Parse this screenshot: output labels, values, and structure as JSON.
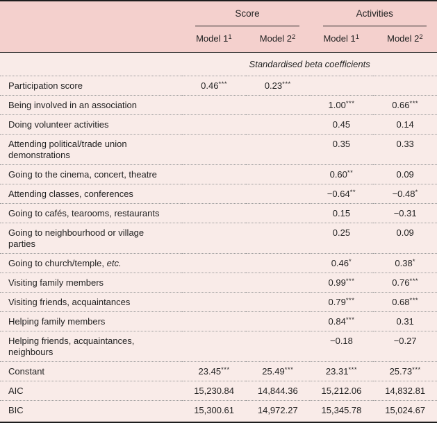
{
  "table": {
    "groups": [
      {
        "label": "Score"
      },
      {
        "label": "Activities"
      }
    ],
    "model_headers": [
      {
        "text": "Model 1",
        "sup": "1"
      },
      {
        "text": "Model 2",
        "sup": "2"
      },
      {
        "text": "Model 1",
        "sup": "1"
      },
      {
        "text": "Model 2",
        "sup": "2"
      }
    ],
    "subheader": "Standardised beta coefficients",
    "rows": [
      {
        "label": "Participation score",
        "values": [
          "0.46***",
          "0.23***",
          "",
          ""
        ]
      },
      {
        "label": "Being involved in an association",
        "values": [
          "",
          "",
          "1.00***",
          "0.66***"
        ]
      },
      {
        "label": "Doing volunteer activities",
        "values": [
          "",
          "",
          "0.45",
          "0.14"
        ]
      },
      {
        "label": "Attending political/trade union\ndemonstrations",
        "values": [
          "",
          "",
          "0.35",
          "0.33"
        ]
      },
      {
        "label": "Going to the cinema, concert, theatre",
        "values": [
          "",
          "",
          "0.60**",
          "0.09"
        ]
      },
      {
        "label": "Attending classes, conferences",
        "values": [
          "",
          "",
          "−0.64**",
          "−0.48*"
        ]
      },
      {
        "label": "Going to cafés, tearooms, restaurants",
        "values": [
          "",
          "",
          "0.15",
          "−0.31"
        ]
      },
      {
        "label": "Going to neighbourhood or village\nparties",
        "values": [
          "",
          "",
          "0.25",
          "0.09"
        ]
      },
      {
        "label": "Going to church/temple, ",
        "label_italic": "etc.",
        "values": [
          "",
          "",
          "0.46*",
          "0.38*"
        ]
      },
      {
        "label": "Visiting family members",
        "values": [
          "",
          "",
          "0.99***",
          "0.76***"
        ]
      },
      {
        "label": "Visiting friends, acquaintances",
        "values": [
          "",
          "",
          "0.79***",
          "0.68***"
        ]
      },
      {
        "label": "Helping family members",
        "values": [
          "",
          "",
          "0.84***",
          "0.31"
        ]
      },
      {
        "label": "Helping friends, acquaintances,\nneighbours",
        "values": [
          "",
          "",
          "−0.18",
          "−0.27"
        ]
      },
      {
        "label": "Constant",
        "values": [
          "23.45***",
          "25.49***",
          "23.31***",
          "25.73***"
        ]
      },
      {
        "label": "AIC",
        "values": [
          "15,230.84",
          "14,844.36",
          "15,212.06",
          "14,832.81"
        ]
      },
      {
        "label": "BIC",
        "values": [
          "15,300.61",
          "14,972.27",
          "15,345.78",
          "15,024.67"
        ]
      }
    ]
  },
  "colors": {
    "header_bg": "#f4d0cd",
    "body_bg": "#f9ebe8",
    "rule_black": "#1d1d1d",
    "rule_dotted": "#9a9a9a",
    "text": "#222222"
  }
}
